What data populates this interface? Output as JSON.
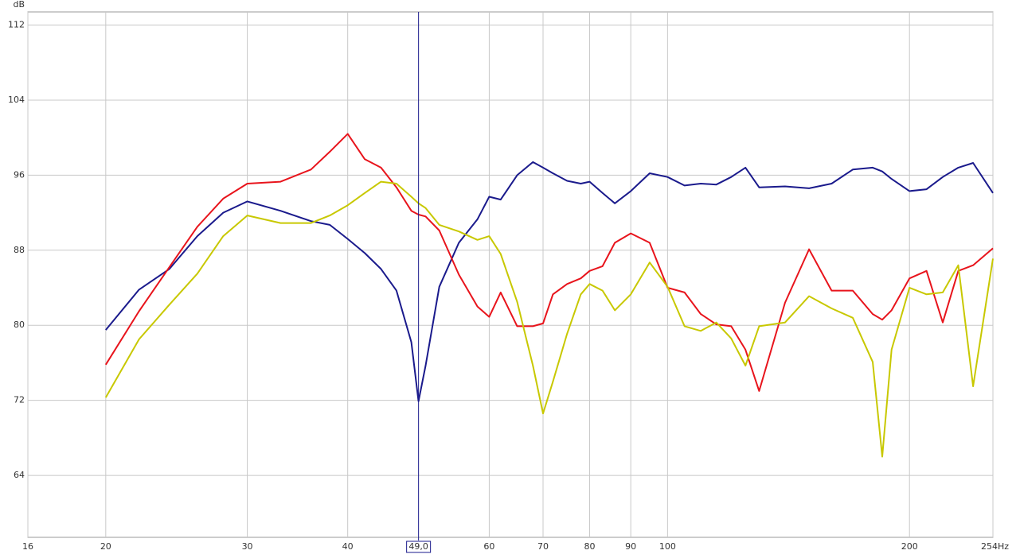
{
  "chart_data": {
    "type": "line",
    "y_label": "dB",
    "xscale": "log",
    "grid": true,
    "xlim": [
      16,
      254
    ],
    "ylim": [
      57.4,
      113.4
    ],
    "xticks": [
      16,
      20,
      30,
      40,
      60,
      70,
      80,
      90,
      100,
      200,
      {
        "value": 254,
        "label": "254Hz"
      }
    ],
    "yticks": [
      64,
      72,
      80,
      88,
      96,
      104,
      112
    ],
    "cursor": {
      "value": 49,
      "label": "49,0",
      "color": "#1a1a8c"
    },
    "x": [
      20,
      22,
      24,
      26,
      28,
      30,
      33,
      36,
      38,
      40,
      42,
      44,
      46,
      48,
      49,
      50,
      52,
      55,
      58,
      60,
      62,
      65,
      68,
      70,
      72,
      75,
      78,
      80,
      83,
      86,
      90,
      95,
      100,
      105,
      110,
      115,
      120,
      125,
      130,
      140,
      150,
      160,
      170,
      180,
      185,
      190,
      200,
      210,
      220,
      230,
      240,
      254
    ],
    "series": [
      {
        "color": "#1a1a8c",
        "values": [
          79.5,
          83.8,
          86,
          89.5,
          92,
          93.2,
          92.2,
          91.1,
          90.7,
          89.2,
          87.7,
          86,
          83.7,
          78.2,
          71.9,
          75.7,
          84.1,
          88.8,
          91.3,
          93.7,
          93.4,
          96,
          97.4,
          96.8,
          96.2,
          95.4,
          95.1,
          95.3,
          94.1,
          93,
          94.3,
          96.2,
          95.8,
          94.9,
          95.1,
          95,
          95.8,
          96.8,
          94.7,
          94.8,
          94.6,
          95.1,
          96.6,
          96.8,
          96.4,
          95.6,
          94.3,
          94.5,
          95.8,
          96.8,
          97.3,
          94.1
        ]
      },
      {
        "color": "#e8141c",
        "values": [
          75.8,
          81.5,
          86.2,
          90.5,
          93.5,
          95.1,
          95.3,
          96.6,
          98.5,
          100.4,
          97.7,
          96.8,
          94.7,
          92.2,
          91.8,
          91.6,
          90.1,
          85.4,
          82,
          80.9,
          83.5,
          79.9,
          79.9,
          80.2,
          83.3,
          84.4,
          85,
          85.8,
          86.3,
          88.8,
          89.8,
          88.8,
          84,
          83.5,
          81.2,
          80.1,
          79.9,
          77.4,
          73,
          82.4,
          88.1,
          83.7,
          83.7,
          81.2,
          80.6,
          81.6,
          85,
          85.8,
          80.3,
          85.8,
          86.4,
          88.2
        ]
      },
      {
        "color": "#c8c800",
        "values": [
          72.3,
          78.5,
          82.2,
          85.5,
          89.5,
          91.7,
          90.9,
          90.9,
          91.7,
          92.8,
          94.1,
          95.3,
          95.1,
          93.7,
          93,
          92.5,
          90.7,
          90,
          89.1,
          89.5,
          87.6,
          82.5,
          75.7,
          70.6,
          74,
          79.1,
          83.3,
          84.4,
          83.7,
          81.6,
          83.3,
          86.7,
          84.1,
          79.9,
          79.4,
          80.3,
          78.6,
          75.7,
          79.9,
          80.3,
          83.1,
          81.8,
          80.8,
          76.1,
          66,
          77.4,
          84,
          83.3,
          83.5,
          86.4,
          73.5,
          87.1
        ]
      }
    ]
  }
}
